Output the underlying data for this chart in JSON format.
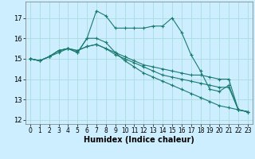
{
  "title": "",
  "xlabel": "Humidex (Indice chaleur)",
  "background_color": "#cceeff",
  "grid_color": "#aadddd",
  "line_color": "#1a7a6e",
  "xlim": [
    -0.5,
    23.5
  ],
  "ylim": [
    11.8,
    17.8
  ],
  "yticks": [
    12,
    13,
    14,
    15,
    16,
    17
  ],
  "xticks": [
    0,
    1,
    2,
    3,
    4,
    5,
    6,
    7,
    8,
    9,
    10,
    11,
    12,
    13,
    14,
    15,
    16,
    17,
    18,
    19,
    20,
    21,
    22,
    23
  ],
  "series": [
    [
      15.0,
      14.9,
      15.1,
      15.3,
      15.5,
      15.3,
      16.0,
      17.35,
      17.1,
      16.5,
      16.5,
      16.5,
      16.5,
      16.6,
      16.6,
      17.0,
      16.3,
      15.2,
      14.4,
      13.5,
      13.4,
      13.7,
      12.5,
      12.4
    ],
    [
      15.0,
      14.9,
      15.1,
      15.4,
      15.5,
      15.3,
      16.0,
      16.0,
      15.8,
      15.3,
      14.9,
      14.6,
      14.3,
      14.1,
      13.9,
      13.7,
      13.5,
      13.3,
      13.1,
      12.9,
      12.7,
      12.6,
      12.5,
      12.4
    ],
    [
      15.0,
      14.9,
      15.1,
      15.4,
      15.5,
      15.4,
      15.6,
      15.7,
      15.5,
      15.2,
      15.0,
      14.8,
      14.6,
      14.4,
      14.2,
      14.1,
      14.0,
      13.9,
      13.8,
      13.7,
      13.6,
      13.6,
      12.5,
      12.4
    ],
    [
      15.0,
      14.9,
      15.1,
      15.4,
      15.5,
      15.4,
      15.6,
      15.7,
      15.5,
      15.3,
      15.1,
      14.9,
      14.7,
      14.6,
      14.5,
      14.4,
      14.3,
      14.2,
      14.2,
      14.1,
      14.0,
      14.0,
      12.5,
      12.4
    ]
  ],
  "xlabel_fontsize": 7,
  "tick_fontsize": 5.5,
  "linewidth": 0.8,
  "markersize": 3
}
